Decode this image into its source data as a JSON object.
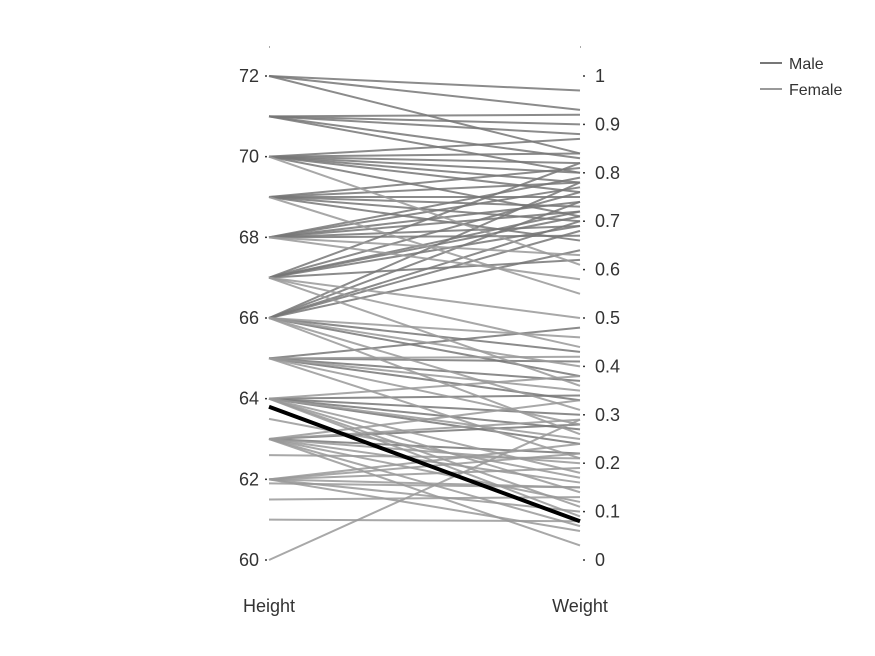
{
  "chart_data": {
    "type": "parallel-coordinates",
    "dimensions": [
      {
        "name": "Height",
        "range": [
          60,
          72
        ],
        "ticks": [
          "60",
          "62",
          "64",
          "66",
          "68",
          "70",
          "72"
        ]
      },
      {
        "name": "Weight",
        "range": [
          0,
          1
        ],
        "ticks": [
          "0",
          "0.1",
          "0.2",
          "0.3",
          "0.4",
          "0.5",
          "0.6",
          "0.7",
          "0.8",
          "0.9",
          "1"
        ]
      }
    ],
    "legend": [
      {
        "name": "Male",
        "color": "#777777"
      },
      {
        "name": "Female",
        "color": "#999999"
      }
    ],
    "legend_position": "top-right",
    "grid": false,
    "series": [
      {
        "name": "Male",
        "color": "#777777",
        "lines": [
          [
            72,
            0.97
          ],
          [
            72,
            0.93
          ],
          [
            72,
            0.84
          ],
          [
            71,
            0.92
          ],
          [
            71,
            0.88
          ],
          [
            71,
            0.8
          ],
          [
            71,
            0.83
          ],
          [
            71,
            0.9
          ],
          [
            70,
            0.87
          ],
          [
            70,
            0.82
          ],
          [
            70,
            0.76
          ],
          [
            70,
            0.8
          ],
          [
            70,
            0.71
          ],
          [
            70,
            0.84
          ],
          [
            70,
            0.78
          ],
          [
            69,
            0.73
          ],
          [
            69,
            0.7
          ],
          [
            69,
            0.81
          ],
          [
            69,
            0.66
          ],
          [
            69,
            0.75
          ],
          [
            69,
            0.78
          ],
          [
            68,
            0.72
          ],
          [
            68,
            0.69
          ],
          [
            68,
            0.74
          ],
          [
            68,
            0.67
          ],
          [
            68,
            0.79
          ],
          [
            68,
            0.77
          ],
          [
            67,
            0.82
          ],
          [
            67,
            0.76
          ],
          [
            67,
            0.71
          ],
          [
            67,
            0.62
          ],
          [
            67,
            0.69
          ],
          [
            67,
            0.72
          ],
          [
            66,
            0.64
          ],
          [
            66,
            0.74
          ],
          [
            66,
            0.68
          ],
          [
            66,
            0.78
          ],
          [
            66,
            0.7
          ],
          [
            66,
            0.43
          ],
          [
            66,
            0.38
          ],
          [
            65,
            0.48
          ],
          [
            65,
            0.41
          ],
          [
            65,
            0.37
          ],
          [
            65,
            0.33
          ],
          [
            64,
            0.3
          ],
          [
            64,
            0.34
          ],
          [
            64,
            0.27
          ],
          [
            64,
            0.24
          ],
          [
            63,
            0.22
          ],
          [
            63,
            0.28
          ]
        ]
      },
      {
        "name": "Female",
        "color": "#999999",
        "lines": [
          [
            70,
            0.61
          ],
          [
            69,
            0.55
          ],
          [
            68,
            0.63
          ],
          [
            68,
            0.58
          ],
          [
            67,
            0.5
          ],
          [
            67,
            0.44
          ],
          [
            67,
            0.36
          ],
          [
            66,
            0.46
          ],
          [
            66,
            0.4
          ],
          [
            66,
            0.31
          ],
          [
            66,
            0.26
          ],
          [
            65,
            0.42
          ],
          [
            65,
            0.35
          ],
          [
            65,
            0.28
          ],
          [
            65,
            0.21
          ],
          [
            64,
            0.38
          ],
          [
            64,
            0.25
          ],
          [
            64,
            0.18
          ],
          [
            64,
            0.14
          ],
          [
            64,
            0.11
          ],
          [
            64,
            0.09
          ],
          [
            63,
            0.33
          ],
          [
            63,
            0.29
          ],
          [
            63,
            0.2
          ],
          [
            63,
            0.16
          ],
          [
            63,
            0.12
          ],
          [
            63,
            0.07
          ],
          [
            63,
            0.03
          ],
          [
            62,
            0.24
          ],
          [
            62,
            0.19
          ],
          [
            62,
            0.15
          ],
          [
            62,
            0.1
          ],
          [
            62,
            0.06
          ],
          [
            62,
            0.22
          ],
          [
            61.9,
            0.15
          ],
          [
            61.5,
            0.13
          ],
          [
            61,
            0.08
          ],
          [
            60,
            0.29
          ],
          [
            62.6,
            0.21
          ],
          [
            63.5,
            0.17
          ]
        ]
      },
      {
        "name": "",
        "color": "#000000",
        "width": 4,
        "lines": [
          [
            63.8,
            0.08
          ]
        ]
      }
    ]
  }
}
